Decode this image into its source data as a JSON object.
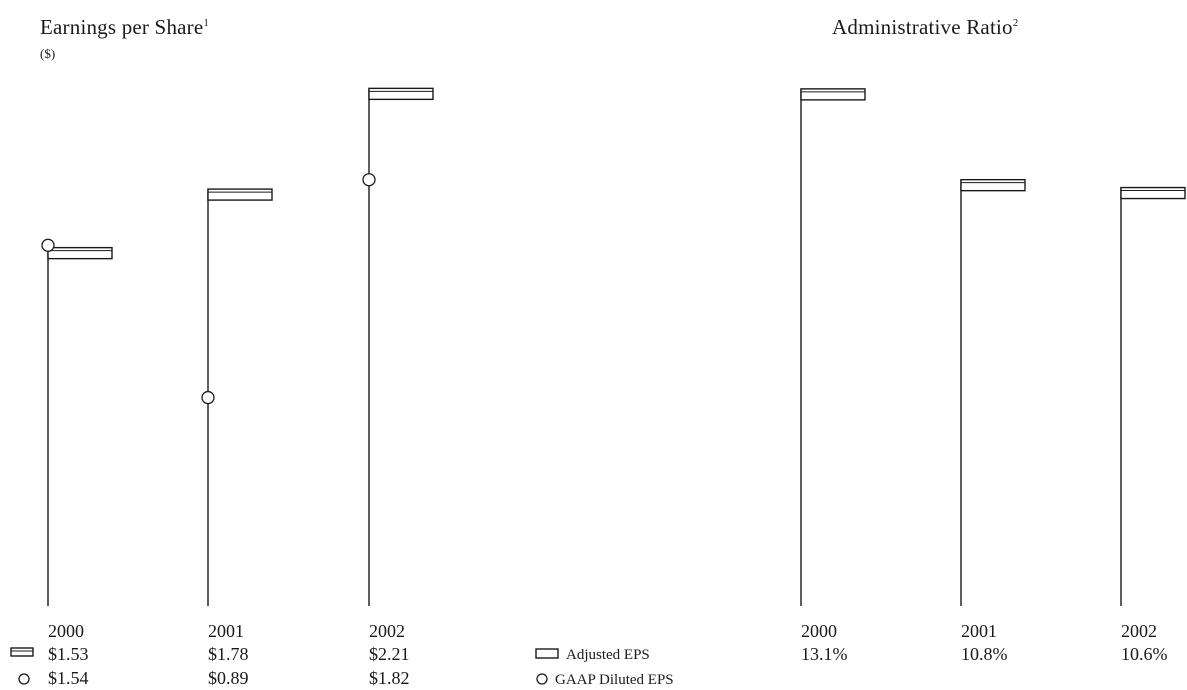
{
  "chart_data": [
    {
      "type": "flag-bar",
      "title": "Earnings per Share",
      "title_footnote": "1",
      "subtitle": "($)",
      "categories": [
        "2000",
        "2001",
        "2002"
      ],
      "series": [
        {
          "name": "Adjusted EPS",
          "marker": "flag",
          "values": [
            1.53,
            1.78,
            2.21
          ],
          "labels": [
            "$1.53",
            "$1.78",
            "$2.21"
          ]
        },
        {
          "name": "GAAP Diluted EPS",
          "marker": "circle",
          "values": [
            1.54,
            0.89,
            1.82
          ],
          "labels": [
            "$1.54",
            "$0.89",
            "$1.82"
          ]
        }
      ],
      "ylim": [
        0,
        2.25
      ],
      "legend_position": "right",
      "grid": false
    },
    {
      "type": "flag-bar",
      "title": "Administrative Ratio",
      "title_footnote": "2",
      "categories": [
        "2000",
        "2001",
        "2002"
      ],
      "series": [
        {
          "marker": "flag",
          "values": [
            13.1,
            10.8,
            10.6
          ],
          "labels": [
            "13.1%",
            "10.8%",
            "10.6%"
          ]
        }
      ],
      "ylim": [
        0,
        13.35
      ],
      "grid": false
    }
  ],
  "legend": {
    "items": [
      {
        "marker": "flag",
        "label": "Adjusted EPS"
      },
      {
        "marker": "circle",
        "label": "GAAP Diluted EPS"
      }
    ]
  }
}
